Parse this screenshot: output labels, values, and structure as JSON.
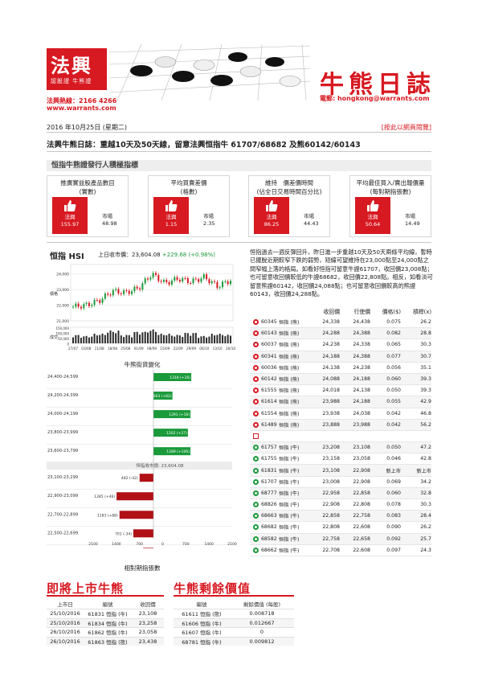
{
  "header": {
    "logo_text": "法興",
    "logo_sub": "認股證 牛熊證",
    "hotline": "法興熱線：2166 4266",
    "website": "www.warrants.com",
    "paper_title": "牛熊日誌",
    "email": "電郵: hongkong@warrants.com",
    "date": "2016 年10月25日 (星期二)",
    "web_version": "[按此以網頁閱覽]",
    "headline": "法興牛熊日誌：重越10天及50天線，留意法興恒指牛 61707/68682 及熊60142/60143"
  },
  "section_title": "恒指牛熊證發行人積極指標",
  "kpis": [
    {
      "title": "推廣實益股產品數目\n(實數)",
      "brand": "法興",
      "brand_val": "155.97",
      "mkt_label": "市場",
      "mkt_val": "48.98"
    },
    {
      "title": "平均買賣差價\n(格數)",
      "brand": "法興",
      "brand_val": "1.15",
      "mkt_label": "市場",
      "mkt_val": "2.35"
    },
    {
      "title": "維持　價差價時間\n(佔全日交易時間百分比)",
      "brand": "法興",
      "brand_val": "86.25",
      "mkt_label": "市場",
      "mkt_val": "44.43"
    },
    {
      "title": "平均最佳買入/賣出報價量\n(每對期指張數)",
      "brand": "法興",
      "brand_val": "50.64",
      "mkt_label": "市場",
      "mkt_val": "14.49"
    }
  ],
  "hsi": {
    "title": "恒指 HSI",
    "close_label": "上日收市價：23,604.08",
    "change": "+229.68 (+0.98%)",
    "y_ticks": [
      "24,000",
      "23,000",
      "22,000",
      "21,000"
    ],
    "vol_ticks": [
      "150,000",
      "100,000",
      "50,000",
      "0"
    ],
    "y_label": "價格",
    "vol_label": "成交",
    "x_ticks": [
      "27/07",
      "03/08",
      "11/08",
      "18/08",
      "25/08",
      "01/09",
      "08/09",
      "15/09",
      "22/09",
      "29/09",
      "06/10",
      "13/10",
      "20/10"
    ]
  },
  "cbbc_title": "牛熊街貨變化",
  "cbbc_foot": "相對期指張數",
  "commentary": "恒指過去一週反彈回升，昨日進一步重越10天及50天兩條平均線，暫時已擺脫近期較窄下跌的弱勢，短線可望維持在23,000點至24,000點之間窄幅上落的格局。如看好恒指可留意牛證61707，收回價23,008點；也可留意收回價較低的牛證68682，收回價22,808點。相反，如看淡可留意熊證60142，收回價24,088點；也可留意收回價較高的熊證60143，收回價24,288點。",
  "watch": {
    "headers": [
      "收回價",
      "行使價",
      "價格($)",
      "槓桿(x)"
    ],
    "rows": [
      {
        "type": "bear",
        "code": "60345",
        "name": "恒指 (熊)",
        "recall": "24,338",
        "strike": "24,438",
        "price": "0.075",
        "lev": "26.2"
      },
      {
        "type": "bear",
        "code": "60143",
        "name": "恒指 (熊)",
        "recall": "24,288",
        "strike": "24,388",
        "price": "0.082",
        "lev": "28.8"
      },
      {
        "type": "bear",
        "code": "60037",
        "name": "恒指 (熊)",
        "recall": "24,238",
        "strike": "24,338",
        "price": "0.065",
        "lev": "30.3"
      },
      {
        "type": "bear",
        "code": "60341",
        "name": "恒指 (熊)",
        "recall": "24,188",
        "strike": "24,388",
        "price": "0.077",
        "lev": "30.7"
      },
      {
        "type": "bear",
        "code": "60036",
        "name": "恒指 (熊)",
        "recall": "24,138",
        "strike": "24,238",
        "price": "0.056",
        "lev": "35.1"
      },
      {
        "type": "bear",
        "code": "60142",
        "name": "恒指 (熊)",
        "recall": "24,088",
        "strike": "24,188",
        "price": "0.060",
        "lev": "39.3"
      },
      {
        "type": "bear",
        "code": "61555",
        "name": "恒指 (熊)",
        "recall": "24,018",
        "strike": "24,138",
        "price": "0.050",
        "lev": "39.3"
      },
      {
        "type": "bear",
        "code": "61614",
        "name": "恒指 (熊)",
        "recall": "23,988",
        "strike": "24,188",
        "price": "0.055",
        "lev": "42.9"
      },
      {
        "type": "bear",
        "code": "61554",
        "name": "恒指 (熊)",
        "recall": "23,938",
        "strike": "24,038",
        "price": "0.042",
        "lev": "46.8"
      },
      {
        "type": "bear",
        "code": "61489",
        "name": "恒指 (熊)",
        "recall": "23,888",
        "strike": "23,988",
        "price": "0.042",
        "lev": "56.2"
      },
      {
        "type": "sep",
        "code": "",
        "name": "",
        "recall": "",
        "strike": "",
        "price": "",
        "lev": ""
      },
      {
        "type": "bull",
        "code": "61757",
        "name": "恒指 (牛)",
        "recall": "23,208",
        "strike": "23,108",
        "price": "0.050",
        "lev": "47.2"
      },
      {
        "type": "bull",
        "code": "61755",
        "name": "恒指 (牛)",
        "recall": "23,158",
        "strike": "23,058",
        "price": "0.046",
        "lev": "42.8"
      },
      {
        "type": "bull",
        "code": "61831",
        "name": "恒指 (牛)",
        "recall": "23,108",
        "strike": "22,908",
        "price": "新上市",
        "lev": "新上市"
      },
      {
        "type": "bull",
        "code": "61707",
        "name": "恒指 (牛)",
        "recall": "23,008",
        "strike": "22,908",
        "price": "0.069",
        "lev": "34.2"
      },
      {
        "type": "bull",
        "code": "68777",
        "name": "恒指 (牛)",
        "recall": "22,958",
        "strike": "22,858",
        "price": "0.060",
        "lev": "32.8"
      },
      {
        "type": "bull",
        "code": "68826",
        "name": "恒指 (牛)",
        "recall": "22,908",
        "strike": "22,808",
        "price": "0.078",
        "lev": "30.3"
      },
      {
        "type": "bull",
        "code": "68663",
        "name": "恒指 (牛)",
        "recall": "22,858",
        "strike": "22,758",
        "price": "0.083",
        "lev": "28.4"
      },
      {
        "type": "bull",
        "code": "68682",
        "name": "恒指 (牛)",
        "recall": "22,808",
        "strike": "22,608",
        "price": "0.090",
        "lev": "26.2"
      },
      {
        "type": "bull",
        "code": "68582",
        "name": "恒指 (牛)",
        "recall": "22,758",
        "strike": "22,658",
        "price": "0.092",
        "lev": "25.7"
      },
      {
        "type": "bull",
        "code": "68662",
        "name": "恒指 (牛)",
        "recall": "22,708",
        "strike": "22,608",
        "price": "0.097",
        "lev": "24.3"
      }
    ]
  },
  "upcoming": {
    "title": "即將上市牛熊",
    "headers": [
      "上市日",
      "編號",
      "收回價"
    ],
    "rows": [
      [
        "25/10/2016",
        "61831 恒指 (牛)",
        "23,108"
      ],
      [
        "25/10/2016",
        "61834 恒指 (牛)",
        "23,258"
      ],
      [
        "26/10/2016",
        "61862 恒指 (牛)",
        "23,058"
      ],
      [
        "26/10/2016",
        "61863 恒指 (熊)",
        "23,438"
      ]
    ]
  },
  "residual": {
    "title": "牛熊剩餘價值",
    "headers": [
      "編號",
      "剩餘價值 (每股)"
    ],
    "rows": [
      [
        "61611 恒指 (熊)",
        "0.008718"
      ],
      [
        "61606 恒指 (牛)",
        "0.012667"
      ],
      [
        "61607 恒指 (牛)",
        "0"
      ],
      [
        "68781 恒指 (牛)",
        "0.009812"
      ]
    ]
  },
  "chart_data": [
    {
      "type": "line",
      "title": "恒指 HSI",
      "ylim": [
        21000,
        24600
      ],
      "x": [
        "27/07",
        "03/08",
        "11/08",
        "18/08",
        "25/08",
        "01/09",
        "08/09",
        "15/09",
        "22/09",
        "29/09",
        "06/10",
        "13/10",
        "20/10"
      ],
      "series": [
        {
          "values": [
            21900,
            22000,
            22300,
            22900,
            22800,
            23100,
            24000,
            23400,
            23700,
            23500,
            23800,
            23200,
            23600
          ]
        }
      ],
      "volume": [
        80000,
        70000,
        90000,
        120000,
        80000,
        110000,
        130000,
        90000,
        80000,
        100000,
        70000,
        90000,
        80000
      ]
    },
    {
      "type": "bar",
      "title": "牛熊街貨變化",
      "xlabel": "相對期指張數",
      "x_ticks": [
        "2100",
        "1400",
        "700",
        "0",
        "700",
        "1400",
        "2100"
      ],
      "hsi_close_label": "恒指收市價: 23,604.08",
      "categories": [
        "24,400-24,599",
        "24,200-24,399",
        "24,000-24,199",
        "23,800-23,999",
        "23,600-23,799",
        "23,100-23,299",
        "22,900-23,099",
        "22,700-22,899",
        "22,500-22,699",
        "22,300-22,499"
      ],
      "series": [
        {
          "name": "熊",
          "values": [
            1318,
            663,
            1291,
            1202,
            1289,
            0,
            0,
            0,
            0,
            0
          ],
          "labels": [
            "1318 (+26)",
            "663 (+82)",
            "1291 (+16)",
            "1202 (+27)",
            "1289 (+106)",
            "",
            "",
            "",
            "",
            ""
          ]
        },
        {
          "name": "牛",
          "values": [
            0,
            0,
            0,
            0,
            0,
            482,
            1285,
            1183,
            701,
            358
          ],
          "labels": [
            "",
            "",
            "",
            "",
            "",
            "482 (-42)",
            "1285 (+46)",
            "1183 (+88)",
            "701 (-34)",
            "358 (-36)"
          ]
        }
      ]
    }
  ]
}
